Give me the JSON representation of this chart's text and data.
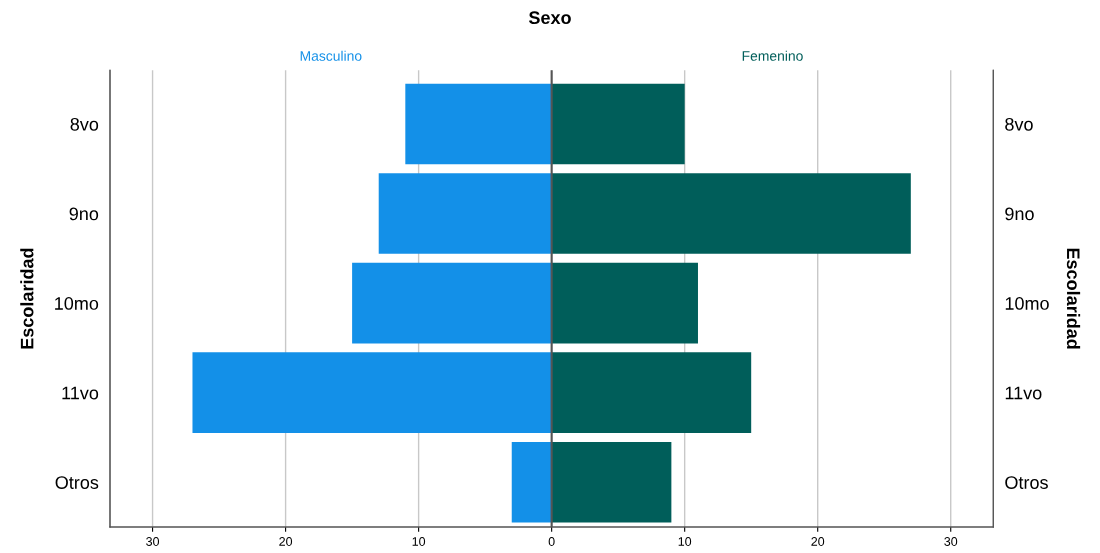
{
  "chart_data": {
    "type": "bar",
    "orientation": "horizontal",
    "title": "Sexo",
    "ylabel": "Escolaridad",
    "y2label": "Escolaridad",
    "categories": [
      "8vo",
      "9no",
      "10mo",
      "11vo",
      "Otros"
    ],
    "series": [
      {
        "name": "Masculino",
        "color": "#1390e8",
        "values": [
          -11,
          -13,
          -15,
          -27,
          -3
        ]
      },
      {
        "name": "Femenino",
        "color": "#005e5a",
        "values": [
          10,
          27,
          11,
          15,
          9
        ]
      }
    ],
    "xlim": [
      -33.2,
      33.2
    ],
    "xticks": [
      {
        "value": -30,
        "label": "30"
      },
      {
        "value": -20,
        "label": "20"
      },
      {
        "value": -10,
        "label": "10"
      },
      0,
      10,
      20,
      30
    ],
    "grid": "x",
    "legend": false,
    "stacked": true,
    "ref_lines": [
      {
        "axis": "x",
        "value": 0,
        "color": "#555555"
      }
    ]
  }
}
